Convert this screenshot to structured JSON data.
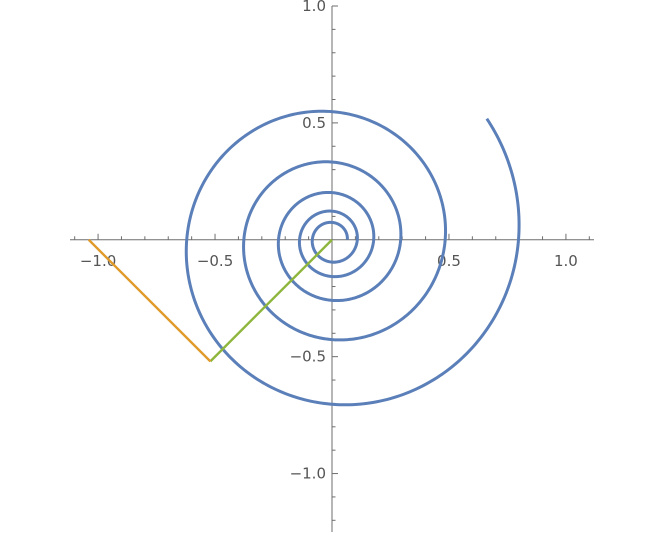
{
  "chart_data": {
    "type": "line",
    "title": "",
    "xlabel": "",
    "ylabel": "",
    "xlim": [
      -1.12,
      1.12
    ],
    "ylim": [
      -1.25,
      1.0
    ],
    "grid": false,
    "x_ticks": [
      {
        "value": -1.0,
        "label": "−1.0"
      },
      {
        "value": -0.5,
        "label": "−0.5"
      },
      {
        "value": 0.5,
        "label": "0.5"
      },
      {
        "value": 1.0,
        "label": "1.0"
      }
    ],
    "y_ticks": [
      {
        "value": 1.0,
        "label": "1.0"
      },
      {
        "value": 0.5,
        "label": "0.5"
      },
      {
        "value": -0.5,
        "label": "−0.5"
      },
      {
        "value": -1.0,
        "label": "−1.0"
      }
    ],
    "series": [
      {
        "kind": "logarithmic-spiral",
        "color": "#5b7fb8",
        "r0": 0.0656,
        "growth_per_radian": 0.0795,
        "theta_start_rad": 0.0,
        "theta_end_rad": 32.08
      },
      {
        "kind": "segment",
        "color": "#8fb63c",
        "points": [
          {
            "x": 0.0,
            "y": 0.0
          },
          {
            "x": -0.52,
            "y": -0.52
          }
        ]
      },
      {
        "kind": "segment",
        "color": "#e09a2a",
        "points": [
          {
            "x": -1.04,
            "y": 0.0
          },
          {
            "x": -0.52,
            "y": -0.52
          }
        ]
      }
    ]
  }
}
